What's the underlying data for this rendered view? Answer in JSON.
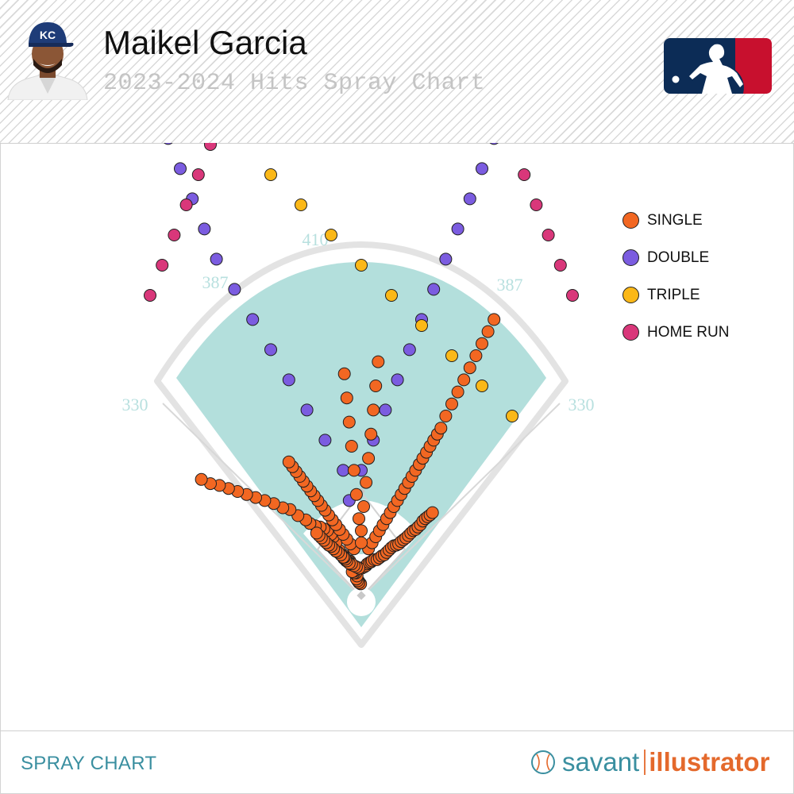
{
  "header": {
    "player_name": "Maikel Garcia",
    "subtitle": "2023-2024 Hits Spray Chart",
    "team_logo_text": "KC",
    "team_color": "#1e3c78",
    "mlb_logo_colors": [
      "#0c2c56",
      "#c8102e"
    ]
  },
  "footer": {
    "label": "SPRAY CHART",
    "brand_a": "savant",
    "brand_b": "illustrator"
  },
  "colors": {
    "field": "#b3dfdc",
    "outline": "#e3e3e3",
    "distance_text": "#b8e0df"
  },
  "chart_data": {
    "type": "scatter",
    "title": "2023-2024 Hits Spray Chart",
    "distances": {
      "left_field_line": "330",
      "left_center": "387",
      "center": "410",
      "right_center": "387",
      "right_field_line": "330"
    },
    "legend_placement": "right",
    "series": [
      {
        "name": "SINGLE",
        "color": "#f26722",
        "points": [
          [
            -1,
            -22
          ],
          [
            -4,
            -26
          ],
          [
            -4,
            -24
          ],
          [
            -6,
            -27
          ],
          [
            -8,
            -30
          ],
          [
            -7,
            -35
          ],
          [
            -9,
            -40
          ],
          [
            -12,
            -40
          ],
          [
            -12,
            -43
          ],
          [
            -13,
            -46
          ],
          [
            -14,
            -50
          ],
          [
            -15,
            -42
          ],
          [
            -17,
            -54
          ],
          [
            -19,
            -60
          ],
          [
            -21,
            -60
          ],
          [
            -23,
            -59
          ],
          [
            -25,
            -60
          ],
          [
            -27,
            -64
          ],
          [
            -29,
            -64
          ],
          [
            -30,
            -70
          ],
          [
            -33,
            -70
          ],
          [
            -36,
            -76
          ],
          [
            -37,
            -78
          ],
          [
            -42,
            -90
          ],
          [
            -46,
            -100
          ],
          [
            -50,
            -104
          ],
          [
            -56,
            -110
          ],
          [
            -62,
            -113
          ],
          [
            -68,
            -116
          ],
          [
            -76,
            -118
          ],
          [
            -85,
            -122
          ],
          [
            -92,
            -128
          ],
          [
            -105,
            -135
          ],
          [
            -118,
            -145
          ],
          [
            -130,
            -148
          ],
          [
            -145,
            -155
          ],
          [
            -160,
            -160
          ],
          [
            -175,
            -165
          ],
          [
            -190,
            -170
          ],
          [
            -205,
            -175
          ],
          [
            -220,
            -180
          ],
          [
            -235,
            -185
          ],
          [
            -250,
            -188
          ],
          [
            -265,
            -195
          ],
          [
            1,
            -48
          ],
          [
            5,
            -50
          ],
          [
            8,
            -52
          ],
          [
            10,
            -55
          ],
          [
            13,
            -57
          ],
          [
            16,
            -58
          ],
          [
            18,
            -60
          ],
          [
            22,
            -62
          ],
          [
            26,
            -62
          ],
          [
            30,
            -65
          ],
          [
            34,
            -68
          ],
          [
            38,
            -70
          ],
          [
            42,
            -74
          ],
          [
            46,
            -78
          ],
          [
            50,
            -82
          ],
          [
            54,
            -85
          ],
          [
            58,
            -86
          ],
          [
            62,
            -88
          ],
          [
            66,
            -92
          ],
          [
            70,
            -95
          ],
          [
            74,
            -98
          ],
          [
            78,
            -102
          ],
          [
            82,
            -106
          ],
          [
            86,
            -110
          ],
          [
            90,
            -112
          ],
          [
            94,
            -116
          ],
          [
            98,
            -120
          ],
          [
            102,
            -126
          ],
          [
            106,
            -130
          ],
          [
            110,
            -133
          ],
          [
            114,
            -136
          ],
          [
            118,
            -140
          ],
          [
            -4,
            -48
          ],
          [
            -8,
            -50
          ],
          [
            -12,
            -52
          ],
          [
            -16,
            -55
          ],
          [
            -20,
            -56
          ],
          [
            -24,
            -60
          ],
          [
            -26,
            -63
          ],
          [
            -28,
            -66
          ],
          [
            -30,
            -66
          ],
          [
            -34,
            -70
          ],
          [
            -38,
            -74
          ],
          [
            -42,
            -76
          ],
          [
            -46,
            -80
          ],
          [
            -50,
            -84
          ],
          [
            -54,
            -86
          ],
          [
            -58,
            -90
          ],
          [
            -62,
            -94
          ],
          [
            -66,
            -98
          ],
          [
            -70,
            -102
          ],
          [
            -74,
            -106
          ],
          [
            -12,
            -80
          ],
          [
            -18,
            -88
          ],
          [
            -24,
            -96
          ],
          [
            -30,
            -104
          ],
          [
            -36,
            -112
          ],
          [
            -42,
            -120
          ],
          [
            -48,
            -128
          ],
          [
            -54,
            -136
          ],
          [
            -60,
            -144
          ],
          [
            -66,
            -152
          ],
          [
            -72,
            -160
          ],
          [
            -78,
            -168
          ],
          [
            -84,
            -176
          ],
          [
            -90,
            -184
          ],
          [
            -96,
            -192
          ],
          [
            -102,
            -200
          ],
          [
            -108,
            -208
          ],
          [
            -114,
            -216
          ],
          [
            -120,
            -224
          ],
          [
            12,
            -80
          ],
          [
            18,
            -90
          ],
          [
            24,
            -100
          ],
          [
            30,
            -110
          ],
          [
            36,
            -120
          ],
          [
            42,
            -130
          ],
          [
            48,
            -140
          ],
          [
            54,
            -150
          ],
          [
            60,
            -160
          ],
          [
            66,
            -170
          ],
          [
            72,
            -180
          ],
          [
            78,
            -190
          ],
          [
            84,
            -200
          ],
          [
            90,
            -210
          ],
          [
            96,
            -220
          ],
          [
            102,
            -230
          ],
          [
            108,
            -240
          ],
          [
            114,
            -250
          ],
          [
            120,
            -260
          ],
          [
            126,
            -270
          ],
          [
            132,
            -280
          ],
          [
            0,
            -90
          ],
          [
            0,
            -110
          ],
          [
            -4,
            -130
          ],
          [
            4,
            -150
          ],
          [
            -8,
            -170
          ],
          [
            8,
            -190
          ],
          [
            -12,
            -210
          ],
          [
            12,
            -230
          ],
          [
            -16,
            -250
          ],
          [
            16,
            -270
          ],
          [
            -20,
            -290
          ],
          [
            20,
            -310
          ],
          [
            -24,
            -330
          ],
          [
            24,
            -350
          ],
          [
            -28,
            -370
          ],
          [
            28,
            -390
          ],
          [
            140,
            -300
          ],
          [
            150,
            -320
          ],
          [
            160,
            -340
          ],
          [
            170,
            -360
          ],
          [
            180,
            -380
          ],
          [
            190,
            -400
          ],
          [
            200,
            -420
          ],
          [
            210,
            -440
          ],
          [
            220,
            -460
          ]
        ]
      },
      {
        "name": "DOUBLE",
        "color": "#7b5ce0",
        "points": [
          [
            -30,
            -210
          ],
          [
            -60,
            -260
          ],
          [
            -90,
            -310
          ],
          [
            -120,
            -360
          ],
          [
            -150,
            -410
          ],
          [
            -180,
            -460
          ],
          [
            -210,
            -510
          ],
          [
            -240,
            -560
          ],
          [
            -20,
            -160
          ],
          [
            0,
            -210
          ],
          [
            20,
            -260
          ],
          [
            40,
            -310
          ],
          [
            60,
            -360
          ],
          [
            80,
            -410
          ],
          [
            100,
            -460
          ],
          [
            120,
            -510
          ],
          [
            140,
            -560
          ],
          [
            160,
            -610
          ],
          [
            180,
            -660
          ],
          [
            200,
            -710
          ],
          [
            220,
            -760
          ],
          [
            240,
            -810
          ],
          [
            260,
            -860
          ],
          [
            -260,
            -610
          ],
          [
            -280,
            -660
          ],
          [
            -300,
            -710
          ],
          [
            -320,
            -760
          ],
          [
            -340,
            -810
          ],
          [
            -360,
            -860
          ],
          [
            280,
            -910
          ],
          [
            300,
            -960
          ],
          [
            320,
            -1010
          ]
        ]
      },
      {
        "name": "TRIPLE",
        "color": "#fbb818",
        "points": [
          [
            -150,
            -700
          ],
          [
            -100,
            -650
          ],
          [
            -50,
            -600
          ],
          [
            0,
            -550
          ],
          [
            50,
            -500
          ],
          [
            100,
            -450
          ],
          [
            150,
            -400
          ],
          [
            200,
            -350
          ],
          [
            250,
            -300
          ]
        ]
      },
      {
        "name": "HOME RUN",
        "color": "#d9377a",
        "points": [
          [
            -350,
            -500
          ],
          [
            -330,
            -550
          ],
          [
            -310,
            -600
          ],
          [
            -290,
            -650
          ],
          [
            -270,
            -700
          ],
          [
            -250,
            -750
          ],
          [
            -230,
            -800
          ],
          [
            350,
            -500
          ],
          [
            330,
            -550
          ],
          [
            310,
            -600
          ],
          [
            290,
            -650
          ],
          [
            270,
            -700
          ]
        ]
      }
    ]
  }
}
